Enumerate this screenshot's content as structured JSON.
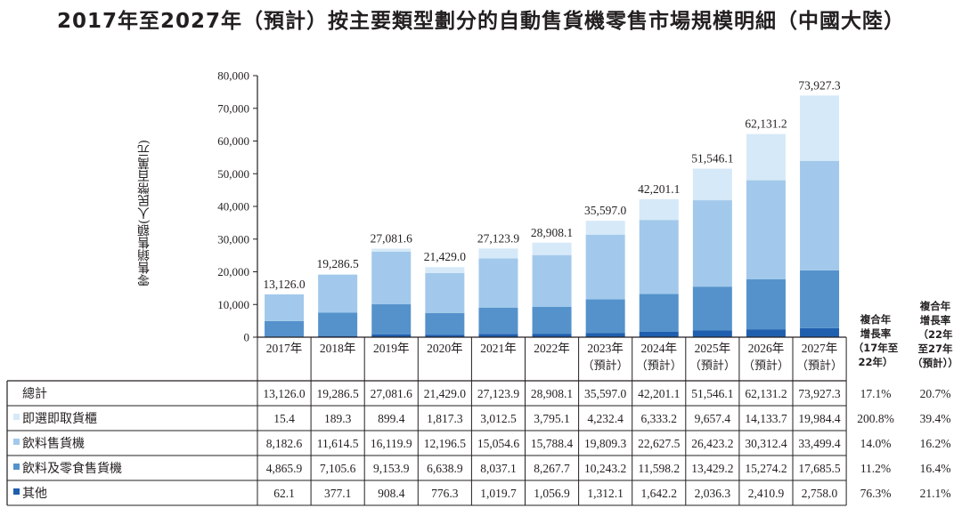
{
  "title": "2017年至2027年（預計）按主要類型劃分的自動售貨機零售市場規模明細（中國大陸）",
  "colors": {
    "即選即取貨櫃": "#d6e9f8",
    "飲料售貨機": "#a2c9eb",
    "飲料及零食售貨機": "#5592cb",
    "其他": "#1f5fae",
    "text": "#231f20",
    "border": "#231f20"
  },
  "chart_data": {
    "type": "bar",
    "stacked": true,
    "title": "2017年至2027年（預計）按主要類型劃分的自動售貨機零售市場規模明細（中國大陸）",
    "xlabel": "",
    "ylabel": "零售銷售額(人民幣百萬元)",
    "ylim": [
      0,
      80000
    ],
    "yticks": [
      0,
      10000,
      20000,
      30000,
      40000,
      50000,
      60000,
      70000,
      80000
    ],
    "ytick_labels": [
      "0",
      "10,000",
      "20,000",
      "30,000",
      "40,000",
      "50,000",
      "60,000",
      "70,000",
      "80,000"
    ],
    "grid": false,
    "categories": [
      "2017年",
      "2018年",
      "2019年",
      "2020年",
      "2021年",
      "2022年",
      "2023年",
      "2024年",
      "2025年",
      "2026年",
      "2027年"
    ],
    "category_sublabels": [
      "",
      "",
      "",
      "",
      "",
      "",
      "（預計）",
      "（預計）",
      "（預計）",
      "（預計）",
      "（預計）"
    ],
    "totals": [
      13126.0,
      19286.5,
      27081.6,
      21429.0,
      27123.9,
      28908.1,
      35597.0,
      42201.1,
      51546.1,
      62131.2,
      73927.3
    ],
    "total_labels": [
      "13,126.0",
      "19,286.5",
      "27,081.6",
      "21,429.0",
      "27,123.9",
      "28,908.1",
      "35,597.0",
      "42,201.1",
      "51,546.1",
      "62,131.2",
      "73,927.3"
    ],
    "series": [
      {
        "name": "其他",
        "values": [
          62.1,
          377.1,
          908.4,
          776.3,
          1019.7,
          1056.9,
          1312.1,
          1642.2,
          2036.3,
          2410.9,
          2758.0
        ]
      },
      {
        "name": "飲料及零食售貨機",
        "values": [
          4865.9,
          7105.6,
          9153.9,
          6638.9,
          8037.1,
          8267.7,
          10243.2,
          11598.2,
          13429.2,
          15274.2,
          17685.5
        ]
      },
      {
        "name": "飲料售貨機",
        "values": [
          8182.6,
          11614.5,
          16119.9,
          12196.5,
          15054.6,
          15788.4,
          19809.3,
          22627.5,
          26423.2,
          30312.4,
          33499.4
        ]
      },
      {
        "name": "即選即取貨櫃",
        "values": [
          15.4,
          189.3,
          899.4,
          1817.3,
          3012.5,
          3795.1,
          4232.4,
          6333.2,
          9657.4,
          14133.7,
          19984.4
        ]
      }
    ],
    "legend": "table-left"
  },
  "table": {
    "cagr_headers": [
      [
        "複合年",
        "增長率",
        "（17年至",
        "22年）"
      ],
      [
        "複合年",
        "增長率",
        "（22年",
        "至27年",
        "（預計））"
      ]
    ],
    "rows": [
      {
        "label": "總計",
        "swatch": "",
        "cells": [
          "13,126.0",
          "19,286.5",
          "27,081.6",
          "21,429.0",
          "27,123.9",
          "28,908.1",
          "35,597.0",
          "42,201.1",
          "51,546.1",
          "62,131.2",
          "73,927.3"
        ],
        "cagr": [
          "17.1%",
          "20.7%"
        ]
      },
      {
        "label": "即選即取貨櫃",
        "swatch": "#d6e9f8",
        "cells": [
          "15.4",
          "189.3",
          "899.4",
          "1,817.3",
          "3,012.5",
          "3,795.1",
          "4,232.4",
          "6,333.2",
          "9,657.4",
          "14,133.7",
          "19,984.4"
        ],
        "cagr": [
          "200.8%",
          "39.4%"
        ]
      },
      {
        "label": "飲料售貨機",
        "swatch": "#a2c9eb",
        "cells": [
          "8,182.6",
          "11,614.5",
          "16,119.9",
          "12,196.5",
          "15,054.6",
          "15,788.4",
          "19,809.3",
          "22,627.5",
          "26,423.2",
          "30,312.4",
          "33,499.4"
        ],
        "cagr": [
          "14.0%",
          "16.2%"
        ]
      },
      {
        "label": "飲料及零食售貨機",
        "swatch": "#5592cb",
        "cells": [
          "4,865.9",
          "7,105.6",
          "9,153.9",
          "6,638.9",
          "8,037.1",
          "8,267.7",
          "10,243.2",
          "11,598.2",
          "13,429.2",
          "15,274.2",
          "17,685.5"
        ],
        "cagr": [
          "11.2%",
          "16.4%"
        ]
      },
      {
        "label": "其他",
        "swatch": "#1f5fae",
        "cells": [
          "62.1",
          "377.1",
          "908.4",
          "776.3",
          "1,019.7",
          "1,056.9",
          "1,312.1",
          "1,642.2",
          "2,036.3",
          "2,410.9",
          "2,758.0"
        ],
        "cagr": [
          "76.3%",
          "21.1%"
        ]
      }
    ]
  }
}
